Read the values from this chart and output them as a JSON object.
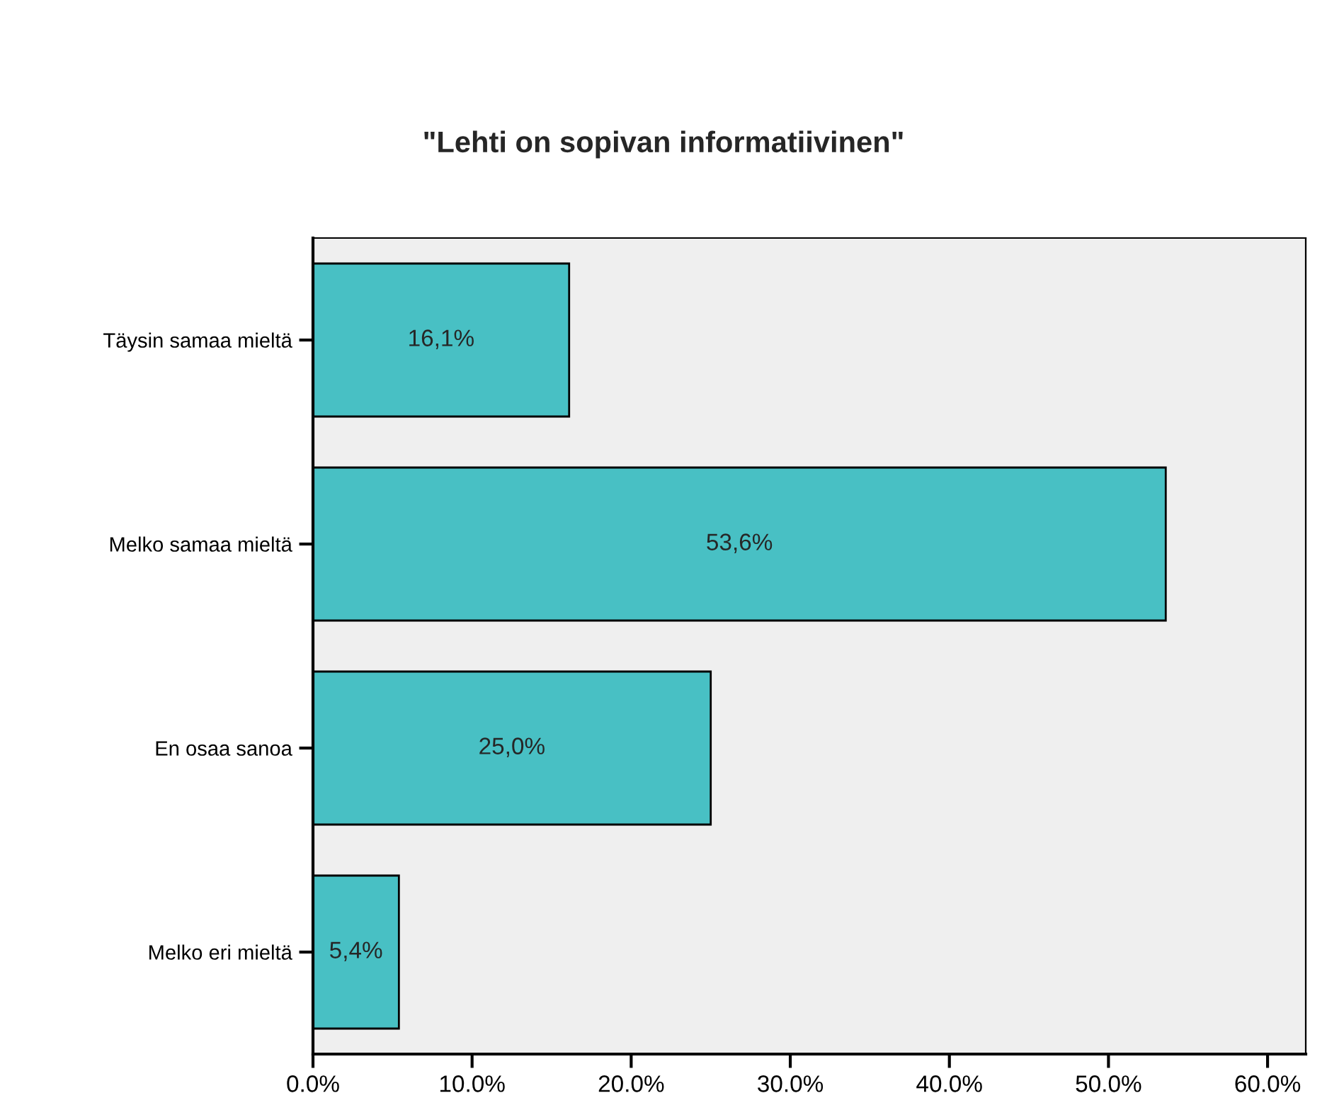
{
  "chart_data": {
    "type": "bar",
    "orientation": "horizontal",
    "title": "\"Lehti on sopivan informatiivinen\"",
    "categories": [
      "Täysin samaa mieltä",
      "Melko samaa mieltä",
      "En osaa sanoa",
      "Melko eri mieltä"
    ],
    "values": [
      16.1,
      53.6,
      25.0,
      5.4
    ],
    "color": "#48c0c4",
    "value_labels": [
      "16,1%",
      "53,6%",
      "25,0%",
      "5,4%"
    ],
    "xlim": [
      0,
      62.4
    ],
    "xticks": [
      {
        "value": 0,
        "label": "0.0%"
      },
      {
        "value": 10,
        "label": "10.0%"
      },
      {
        "value": 20,
        "label": "20.0%"
      },
      {
        "value": 30,
        "label": "30.0%"
      },
      {
        "value": 40,
        "label": "40.0%"
      },
      {
        "value": 50,
        "label": "50.0%"
      },
      {
        "value": 60,
        "label": "60.0%"
      }
    ],
    "grid": false,
    "legend": false
  }
}
